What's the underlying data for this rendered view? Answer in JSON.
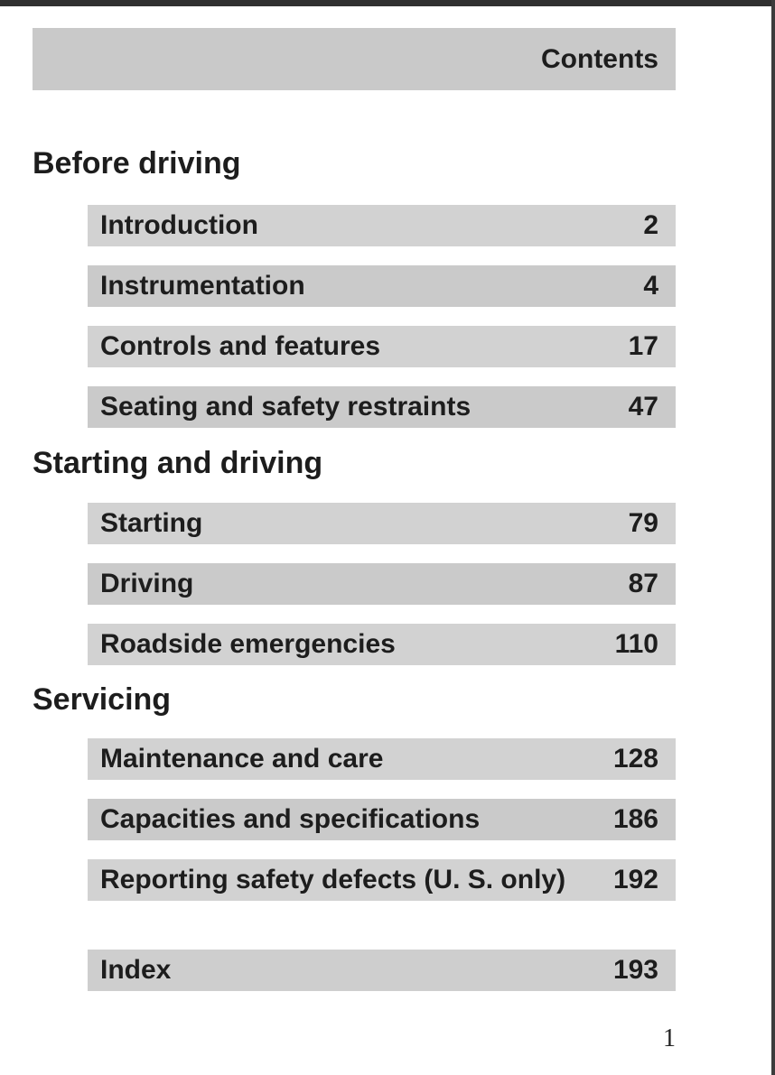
{
  "header": {
    "title": "Contents"
  },
  "sections": [
    {
      "title": "Before driving",
      "items": [
        {
          "label": "Introduction",
          "page": "2"
        },
        {
          "label": "Instrumentation",
          "page": "4"
        },
        {
          "label": "Controls and features",
          "page": "17"
        },
        {
          "label": "Seating and safety restraints",
          "page": "47"
        }
      ]
    },
    {
      "title": "Starting and driving",
      "items": [
        {
          "label": "Starting",
          "page": "79"
        },
        {
          "label": "Driving",
          "page": "87"
        },
        {
          "label": "Roadside emergencies",
          "page": "110"
        }
      ]
    },
    {
      "title": "Servicing",
      "items": [
        {
          "label": "Maintenance and care",
          "page": "128"
        },
        {
          "label": "Capacities and specifications",
          "page": "186"
        },
        {
          "label": "Reporting safety defects (U. S. only)",
          "page": "192"
        }
      ]
    }
  ],
  "index_item": {
    "label": "Index",
    "page": "193"
  },
  "page_number": "1",
  "colors": {
    "row_gray": "#cecece",
    "header_gray": "#c9c9c9",
    "text": "#1d1d1d",
    "scan_edge": "#303030"
  }
}
